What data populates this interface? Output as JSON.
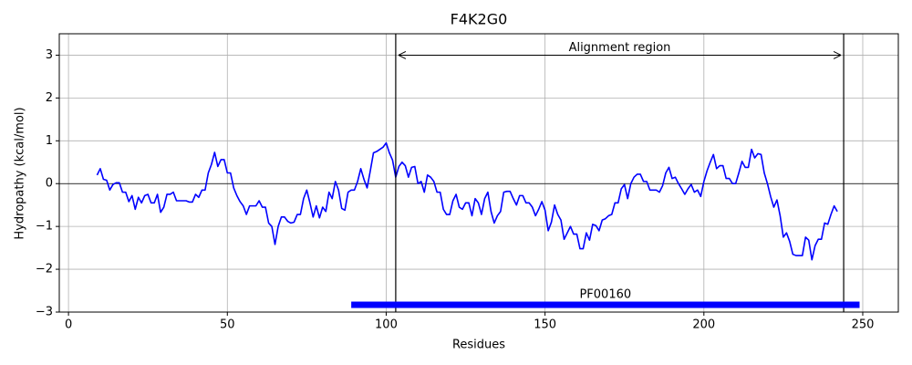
{
  "chart_data": {
    "type": "line",
    "title": "F4K2G0",
    "xlabel": "Residues",
    "ylabel": "Hydropathy (kcal/mol)",
    "x": [
      9,
      10,
      11,
      12,
      13,
      14,
      15,
      16,
      17,
      18,
      19,
      20,
      21,
      22,
      23,
      24,
      25,
      26,
      27,
      28,
      29,
      30,
      31,
      32,
      33,
      34,
      35,
      36,
      37,
      38,
      39,
      40,
      41,
      42,
      43,
      44,
      45,
      46,
      47,
      48,
      49,
      50,
      51,
      52,
      53,
      54,
      55,
      56,
      57,
      58,
      59,
      60,
      61,
      62,
      63,
      64,
      65,
      66,
      67,
      68,
      69,
      70,
      71,
      72,
      73,
      74,
      75,
      76,
      77,
      78,
      79,
      80,
      81,
      82,
      83,
      84,
      85,
      86,
      87,
      88,
      89,
      90,
      91,
      92,
      93,
      94,
      95,
      96,
      97,
      98,
      99,
      100,
      101,
      102,
      103,
      104,
      105,
      106,
      107,
      108,
      109,
      110,
      111,
      112,
      113,
      114,
      115,
      116,
      117,
      118,
      119,
      120,
      121,
      122,
      123,
      124,
      125,
      126,
      127,
      128,
      129,
      130,
      131,
      132,
      133,
      134,
      135,
      136,
      137,
      138,
      139,
      140,
      141,
      142,
      143,
      144,
      145,
      146,
      147,
      148,
      149,
      150,
      151,
      152,
      153,
      154,
      155,
      156,
      157,
      158,
      159,
      160,
      161,
      162,
      163,
      164,
      165,
      166,
      167,
      168,
      169,
      170,
      171,
      172,
      173,
      174,
      175,
      176,
      177,
      178,
      179,
      180,
      181,
      182,
      183,
      184,
      185,
      186,
      187,
      188,
      189,
      190,
      191,
      192,
      193,
      194,
      195,
      196,
      197,
      198,
      199,
      200,
      201,
      202,
      203,
      204,
      205,
      206,
      207,
      208,
      209,
      210,
      211,
      212,
      213,
      214,
      215,
      216,
      217,
      218,
      219,
      220,
      221,
      222,
      223,
      224,
      225,
      226,
      227,
      228,
      229,
      230,
      231,
      232,
      233,
      234,
      235,
      236,
      237,
      238,
      239,
      240,
      241,
      242
    ],
    "series": [
      {
        "name": "Hydropathy",
        "color": "#0000ff",
        "values": [
          0.2,
          0.35,
          0.1,
          0.08,
          -0.15,
          -0.02,
          0.02,
          0.02,
          -0.2,
          -0.2,
          -0.42,
          -0.28,
          -0.6,
          -0.32,
          -0.45,
          -0.28,
          -0.25,
          -0.45,
          -0.45,
          -0.25,
          -0.67,
          -0.55,
          -0.25,
          -0.25,
          -0.2,
          -0.4,
          -0.4,
          -0.4,
          -0.4,
          -0.43,
          -0.43,
          -0.25,
          -0.32,
          -0.15,
          -0.15,
          0.25,
          0.45,
          0.73,
          0.4,
          0.56,
          0.56,
          0.25,
          0.25,
          -0.1,
          -0.28,
          -0.42,
          -0.52,
          -0.72,
          -0.52,
          -0.52,
          -0.52,
          -0.4,
          -0.55,
          -0.55,
          -0.92,
          -1.0,
          -1.42,
          -1.0,
          -0.78,
          -0.78,
          -0.88,
          -0.92,
          -0.9,
          -0.72,
          -0.72,
          -0.35,
          -0.15,
          -0.45,
          -0.78,
          -0.52,
          -0.8,
          -0.55,
          -0.65,
          -0.2,
          -0.35,
          0.05,
          -0.15,
          -0.58,
          -0.62,
          -0.2,
          -0.15,
          -0.15,
          0.05,
          0.35,
          0.1,
          -0.1,
          0.3,
          0.72,
          0.75,
          0.8,
          0.85,
          0.95,
          0.72,
          0.55,
          0.15,
          0.4,
          0.5,
          0.42,
          0.15,
          0.38,
          0.4,
          0.0,
          0.05,
          -0.2,
          0.2,
          0.15,
          0.05,
          -0.2,
          -0.2,
          -0.6,
          -0.72,
          -0.72,
          -0.4,
          -0.25,
          -0.55,
          -0.6,
          -0.45,
          -0.45,
          -0.75,
          -0.35,
          -0.45,
          -0.72,
          -0.35,
          -0.2,
          -0.65,
          -0.92,
          -0.75,
          -0.65,
          -0.2,
          -0.18,
          -0.18,
          -0.35,
          -0.5,
          -0.28,
          -0.28,
          -0.45,
          -0.45,
          -0.55,
          -0.75,
          -0.6,
          -0.42,
          -0.62,
          -1.1,
          -0.9,
          -0.5,
          -0.72,
          -0.85,
          -1.3,
          -1.15,
          -1.0,
          -1.18,
          -1.18,
          -1.52,
          -1.52,
          -1.15,
          -1.32,
          -0.95,
          -0.98,
          -1.1,
          -0.85,
          -0.82,
          -0.75,
          -0.72,
          -0.45,
          -0.45,
          -0.12,
          -0.02,
          -0.35,
          0.0,
          0.15,
          0.22,
          0.22,
          0.05,
          0.05,
          -0.15,
          -0.15,
          -0.15,
          -0.2,
          -0.05,
          0.25,
          0.38,
          0.12,
          0.15,
          0.0,
          -0.12,
          -0.25,
          -0.12,
          -0.02,
          -0.2,
          -0.15,
          -0.3,
          0.05,
          0.3,
          0.5,
          0.68,
          0.35,
          0.42,
          0.42,
          0.12,
          0.12,
          0.0,
          0.0,
          0.25,
          0.52,
          0.38,
          0.38,
          0.8,
          0.6,
          0.7,
          0.68,
          0.25,
          0.0,
          -0.3,
          -0.55,
          -0.38,
          -0.75,
          -1.25,
          -1.15,
          -1.35,
          -1.65,
          -1.68,
          -1.68,
          -1.68,
          -1.25,
          -1.32,
          -1.78,
          -1.45,
          -1.3,
          -1.3,
          -0.92,
          -0.95,
          -0.72,
          -0.52,
          -0.65
        ]
      }
    ],
    "xlim": [
      -2.9,
      261.2
    ],
    "ylim": [
      -3,
      3.5
    ],
    "xticks": [
      0,
      50,
      100,
      150,
      200,
      250
    ],
    "yticks": [
      {
        "value": -3,
        "label": "−3"
      },
      {
        "value": -2,
        "label": "−2"
      },
      {
        "value": -1,
        "label": "−1"
      },
      0,
      1,
      2,
      3
    ],
    "grid": true,
    "hline": 0,
    "alignment": {
      "text": "Alignment region",
      "start": 103,
      "end": 244,
      "y": 3
    },
    "domain": {
      "text": "PF00160",
      "start": 89,
      "end": 249,
      "y": -2.83,
      "color": "#0000ff"
    }
  }
}
